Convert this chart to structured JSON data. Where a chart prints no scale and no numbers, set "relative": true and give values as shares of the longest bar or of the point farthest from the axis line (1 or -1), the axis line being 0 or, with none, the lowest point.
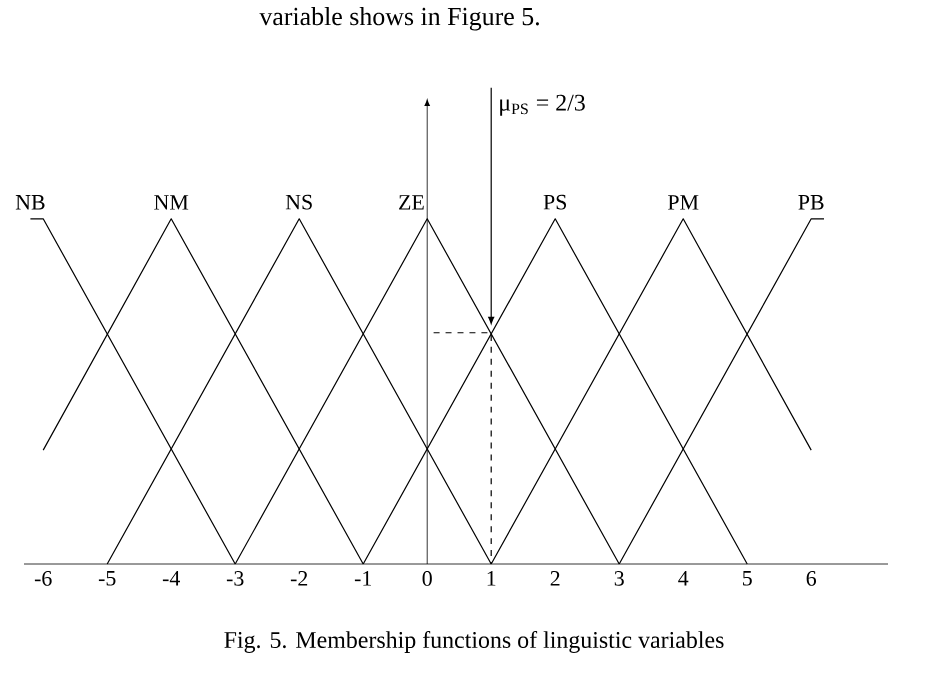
{
  "chart_data": {
    "type": "line",
    "relative": true,
    "marker": "none",
    "line_style": "solid",
    "xlim": [
      -6.3,
      7.2
    ],
    "xticks": [
      -6,
      -5,
      -4,
      -3,
      -2,
      -1,
      0,
      1,
      2,
      3,
      4,
      5,
      6
    ],
    "series": [
      {
        "name": "NB",
        "color": "#000000",
        "x": [
          -6.2,
          -6,
          -3
        ],
        "values": [
          1,
          1,
          0
        ]
      },
      {
        "name": "NM",
        "color": "#000000",
        "x": [
          -6,
          -4,
          -1
        ],
        "values": [
          0.33,
          1,
          0
        ]
      },
      {
        "name": "NS",
        "color": "#000000",
        "x": [
          -5,
          -2,
          1
        ],
        "values": [
          0,
          1,
          0
        ]
      },
      {
        "name": "ZE",
        "color": "#000000",
        "x": [
          -3,
          0,
          3
        ],
        "values": [
          0,
          1,
          0
        ]
      },
      {
        "name": "PS",
        "color": "#000000",
        "x": [
          -1,
          2,
          5
        ],
        "values": [
          0,
          1,
          0
        ]
      },
      {
        "name": "PM",
        "color": "#000000",
        "x": [
          1,
          4,
          6
        ],
        "values": [
          0,
          1,
          0.33
        ]
      },
      {
        "name": "PB",
        "color": "#000000",
        "x": [
          3,
          6,
          6.2
        ],
        "values": [
          0,
          1,
          1
        ]
      },
      {
        "color": "#000000",
        "line_style": "dashed",
        "x": [
          0.1,
          1,
          1
        ],
        "values": [
          0.67,
          0.67,
          0
        ]
      }
    ],
    "annotations": [
      "variable shows in Figure 5.",
      {
        "text": "μ$_{PS}$ = 2/3",
        "x": 1,
        "y": 0.67
      },
      "Fig. 5. Membership functions of linguistic variables"
    ]
  }
}
